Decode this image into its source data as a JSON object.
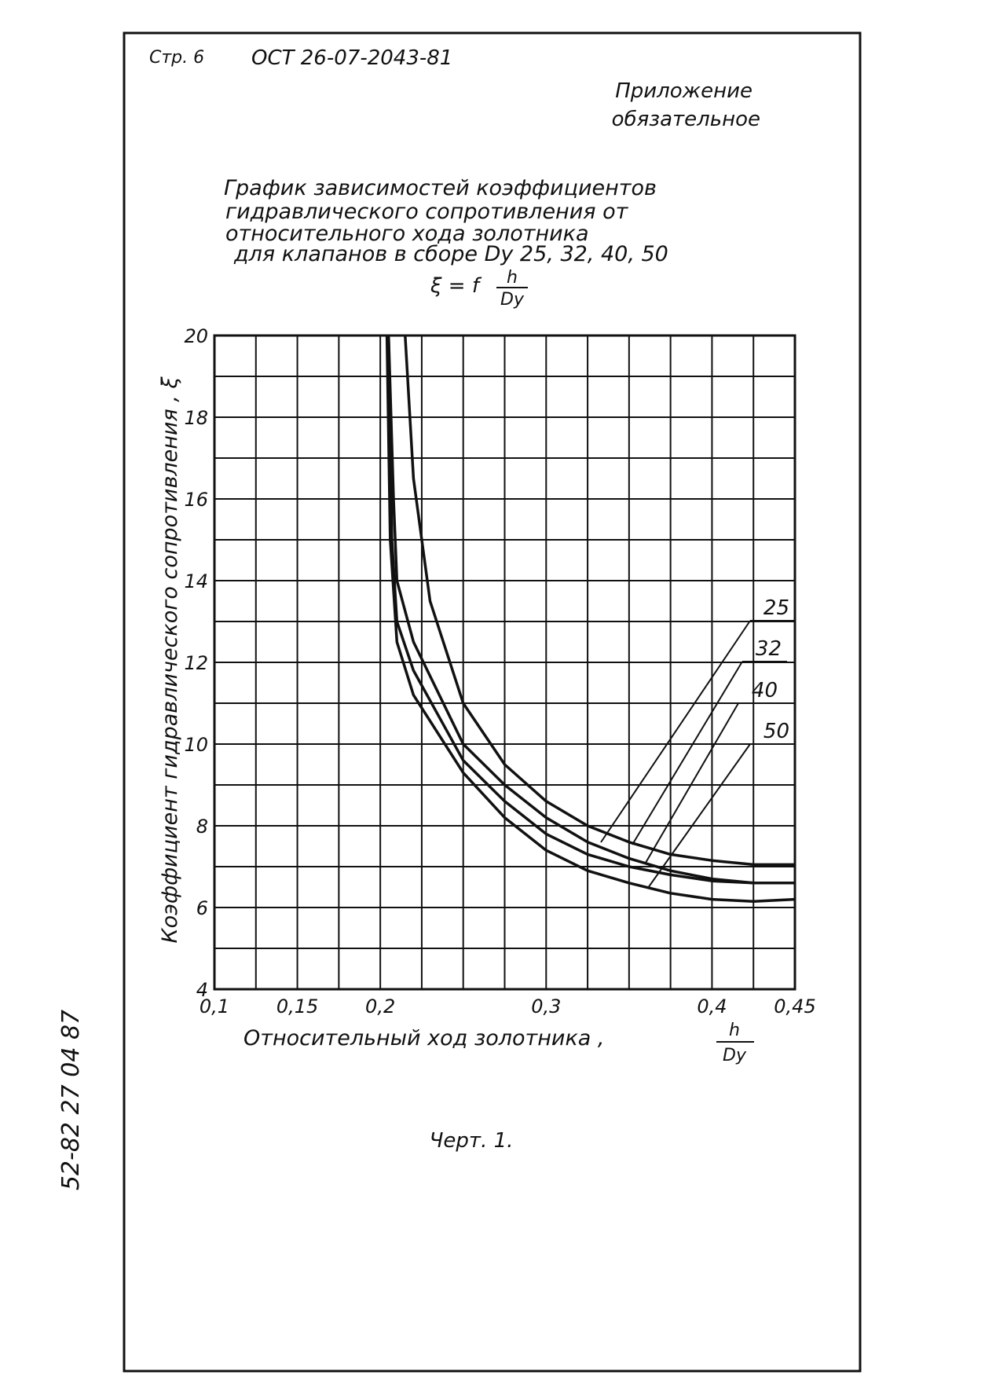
{
  "header": {
    "page": "Стр. 6",
    "code": "ОСТ 26-07-2043-81",
    "appendix": [
      "Приложение",
      "обязательное"
    ]
  },
  "side_note": "52-82  27 04 87",
  "caption": "Черт. 1.",
  "chart_data": {
    "type": "line",
    "title": [
      "График зависимостей коэффициентов",
      "гидравлического сопротивления от",
      "относительного хода золотника",
      "для клапанов в сборе Dу 25, 32, 40, 50"
    ],
    "formula": "ξ = f",
    "formula_fraction": [
      "h",
      "Dу"
    ],
    "y_label": "Коэффициент гидравлического сопротивления , ξ",
    "x_label": "Относительный ход золотника ,",
    "x_label_fraction": [
      "h",
      "Dу"
    ],
    "xlim": [
      0.1,
      0.45
    ],
    "ylim": [
      4,
      20
    ],
    "xticks": [
      {
        "value": 0.1,
        "label": "0,1"
      },
      {
        "value": 0.15,
        "label": "0,15"
      },
      {
        "value": 0.2,
        "label": "0,2"
      },
      {
        "value": 0.3,
        "label": "0,3"
      },
      {
        "value": 0.4,
        "label": "0,4"
      },
      {
        "value": 0.45,
        "label": "0,45"
      }
    ],
    "yticks": [
      4,
      6,
      8,
      10,
      12,
      14,
      16,
      18,
      20
    ],
    "xgrid": [
      0.1,
      0.125,
      0.15,
      0.175,
      0.2,
      0.225,
      0.25,
      0.275,
      0.3,
      0.325,
      0.35,
      0.375,
      0.4,
      0.425,
      0.45
    ],
    "ygrid": [
      4,
      5,
      6,
      7,
      8,
      9,
      10,
      11,
      12,
      13,
      14,
      15,
      16,
      17,
      18,
      19,
      20
    ],
    "grid": true,
    "series": [
      {
        "name": "25",
        "color": "#111111",
        "x": [
          0.215,
          0.22,
          0.23,
          0.25,
          0.275,
          0.3,
          0.325,
          0.35,
          0.375,
          0.4,
          0.425,
          0.45
        ],
        "values": [
          20,
          16.5,
          13.5,
          11,
          9.5,
          8.6,
          8,
          7.6,
          7.3,
          7.15,
          7.05,
          7.05
        ]
      },
      {
        "name": "32",
        "color": "#111111",
        "x": [
          0.205,
          0.208,
          0.21,
          0.22,
          0.25,
          0.275,
          0.3,
          0.325,
          0.35,
          0.375,
          0.4,
          0.425,
          0.45
        ],
        "values": [
          20,
          16,
          14,
          12.5,
          10,
          9,
          8.2,
          7.6,
          7.2,
          6.9,
          6.7,
          6.6,
          6.6
        ]
      },
      {
        "name": "40",
        "color": "#111111",
        "x": [
          0.205,
          0.207,
          0.21,
          0.22,
          0.25,
          0.275,
          0.3,
          0.325,
          0.35,
          0.375,
          0.4,
          0.425,
          0.45
        ],
        "values": [
          20,
          15,
          13,
          11.8,
          9.6,
          8.6,
          7.8,
          7.3,
          7,
          6.8,
          6.65,
          6.6,
          6.6
        ]
      },
      {
        "name": "50",
        "color": "#111111",
        "x": [
          0.204,
          0.206,
          0.21,
          0.22,
          0.25,
          0.275,
          0.3,
          0.325,
          0.35,
          0.375,
          0.4,
          0.425,
          0.45
        ],
        "values": [
          20,
          15,
          12.5,
          11.2,
          9.3,
          8.2,
          7.4,
          6.9,
          6.6,
          6.35,
          6.2,
          6.15,
          6.2
        ]
      }
    ]
  }
}
